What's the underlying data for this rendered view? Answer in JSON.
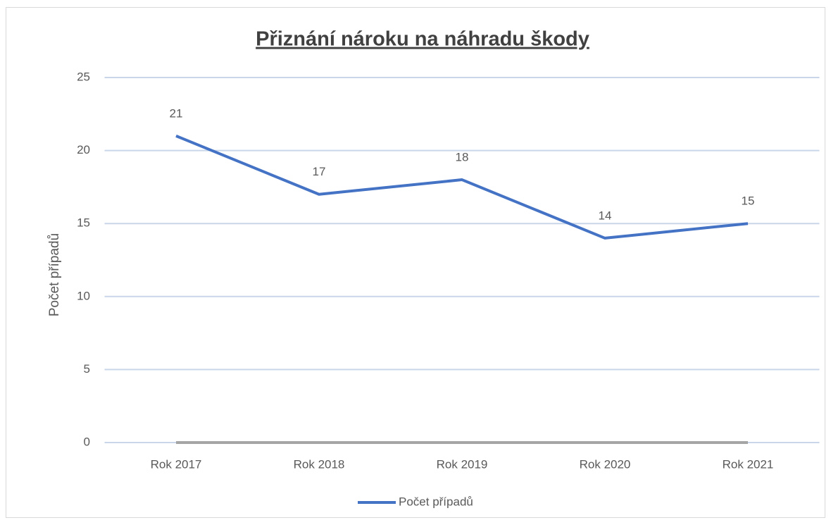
{
  "chart_data": {
    "type": "line",
    "title": "Přiznání nároku na náhradu škody",
    "y_label": "Počet případů",
    "categories": [
      "Rok 2017",
      "Rok 2018",
      "Rok 2019",
      "Rok 2020",
      "Rok 2021"
    ],
    "series": [
      {
        "name": "Počet případů",
        "color": "#4472c4",
        "values": [
          21,
          17,
          18,
          14,
          15
        ]
      },
      {
        "color": "#a5a5a5",
        "values": [
          0,
          0,
          0,
          0,
          0
        ]
      }
    ],
    "data_labels": true,
    "ylim": [
      0,
      25
    ],
    "yticks": [
      0,
      5,
      10,
      15,
      20,
      25
    ],
    "grid": true,
    "legend": "bottom"
  }
}
